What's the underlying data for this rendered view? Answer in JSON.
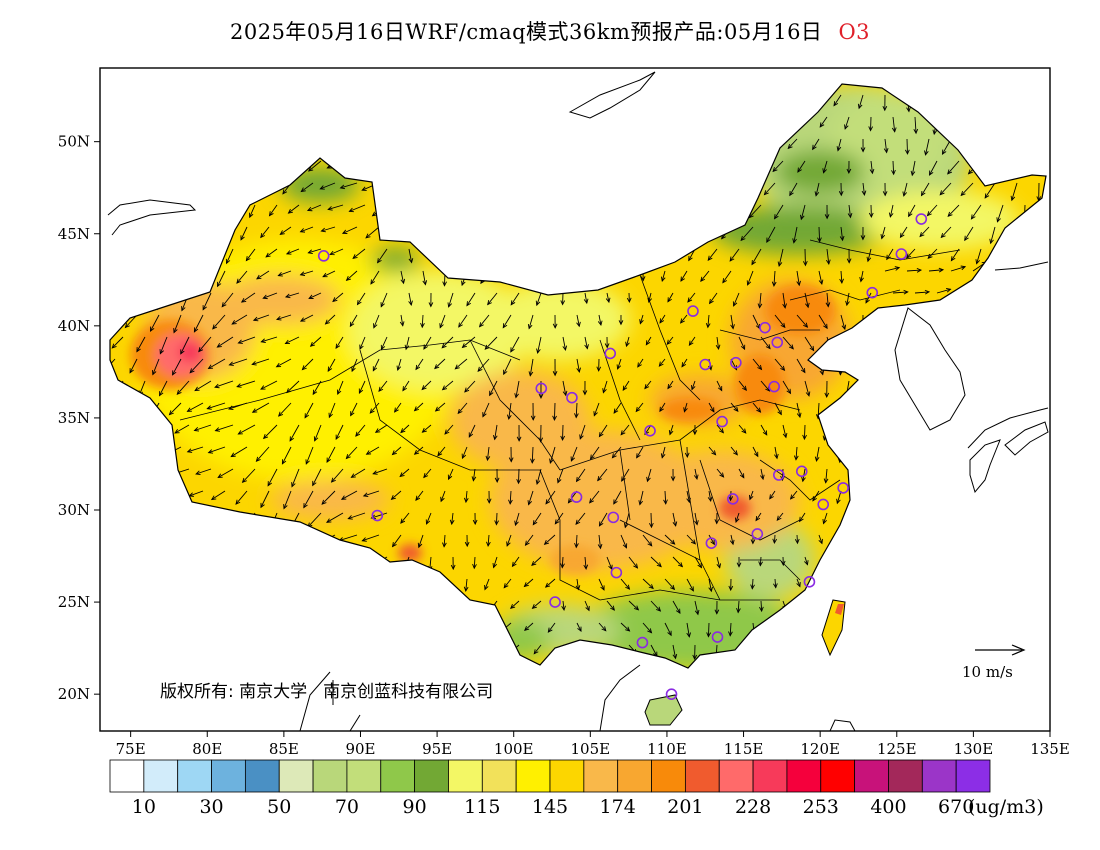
{
  "title": {
    "main": "2025年05月16日WRF/cmaq模式36km预报产品:05月16日",
    "species": "O3"
  },
  "axes": {
    "lon_ticks": [
      "75E",
      "80E",
      "85E",
      "90E",
      "95E",
      "100E",
      "105E",
      "110E",
      "115E",
      "120E",
      "125E",
      "130E",
      "135E"
    ],
    "lat_ticks": [
      "50N",
      "45N",
      "40N",
      "35N",
      "30N",
      "25N",
      "20N"
    ]
  },
  "map_extent": {
    "lon_min": 73,
    "lon_max": 135,
    "lat_min": 18,
    "lat_max": 54
  },
  "wind_reference": {
    "label": "10 m/s"
  },
  "copyright": {
    "text": "版权所有: 南京大学",
    "text2": "南京创蓝科技有限公司"
  },
  "legend": {
    "colors": [
      "#ffffff",
      "#d2ecfa",
      "#9ed7f4",
      "#6db2de",
      "#4a90c4",
      "#dde9b8",
      "#b9d77a",
      "#c2de7a",
      "#8fc84a",
      "#72a834",
      "#f3f765",
      "#f2e15a",
      "#fff000",
      "#fcd600",
      "#f9b84a",
      "#f8a730",
      "#f88a0a",
      "#f05b2e",
      "#ff6a6a",
      "#f73a5a",
      "#f5003c",
      "#ff0000",
      "#c8127a",
      "#a3285a",
      "#9b35c8",
      "#8c2ee6"
    ],
    "labels": [
      "10",
      "30",
      "50",
      "70",
      "90",
      "115",
      "145",
      "174",
      "201",
      "228",
      "253",
      "400",
      "670"
    ],
    "unit": "(ug/m3)"
  },
  "stations": [
    {
      "lon": 87.6,
      "lat": 43.8
    },
    {
      "lon": 91.1,
      "lat": 29.7
    },
    {
      "lon": 101.8,
      "lat": 36.6
    },
    {
      "lon": 103.8,
      "lat": 36.1
    },
    {
      "lon": 106.3,
      "lat": 38.5
    },
    {
      "lon": 104.1,
      "lat": 30.7
    },
    {
      "lon": 106.5,
      "lat": 29.6
    },
    {
      "lon": 102.7,
      "lat": 25.0
    },
    {
      "lon": 106.7,
      "lat": 26.6
    },
    {
      "lon": 108.4,
      "lat": 22.8
    },
    {
      "lon": 110.3,
      "lat": 20.0
    },
    {
      "lon": 113.3,
      "lat": 23.1
    },
    {
      "lon": 112.9,
      "lat": 28.2
    },
    {
      "lon": 114.3,
      "lat": 30.6
    },
    {
      "lon": 115.9,
      "lat": 28.7
    },
    {
      "lon": 119.3,
      "lat": 26.1
    },
    {
      "lon": 120.2,
      "lat": 30.3
    },
    {
      "lon": 121.5,
      "lat": 31.2
    },
    {
      "lon": 118.8,
      "lat": 32.1
    },
    {
      "lon": 117.3,
      "lat": 31.9
    },
    {
      "lon": 113.6,
      "lat": 34.8
    },
    {
      "lon": 108.9,
      "lat": 34.3
    },
    {
      "lon": 112.5,
      "lat": 37.9
    },
    {
      "lon": 114.5,
      "lat": 38.0
    },
    {
      "lon": 117.0,
      "lat": 36.7
    },
    {
      "lon": 117.2,
      "lat": 39.1
    },
    {
      "lon": 116.4,
      "lat": 39.9
    },
    {
      "lon": 111.7,
      "lat": 40.8
    },
    {
      "lon": 123.4,
      "lat": 41.8
    },
    {
      "lon": 125.3,
      "lat": 43.9
    },
    {
      "lon": 126.6,
      "lat": 45.8
    }
  ]
}
